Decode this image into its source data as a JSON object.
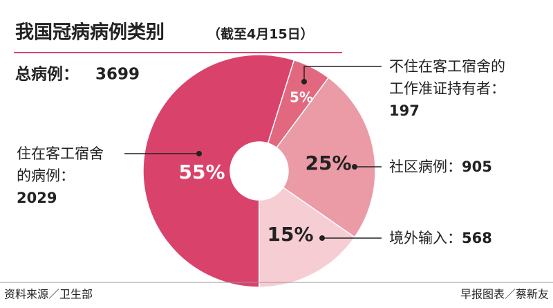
{
  "chart_data": {
    "type": "donut",
    "title": "我国冠病病例类别",
    "subtitle": "（截至4月15日）",
    "total_label": "总病例：",
    "total": 3699,
    "categories": [
      "住在客工宿舍的病例：",
      "不住在客工宿舍的工作准证持有者：",
      "社区病例：",
      "境外输入："
    ],
    "values": [
      2029,
      197,
      905,
      568
    ],
    "shares": [
      55,
      5,
      25,
      15
    ],
    "share_labels": [
      "55%",
      "5%",
      "25%",
      "15%"
    ],
    "colors": [
      "#d9436b",
      "#e2687f",
      "#eb9ba6",
      "#f6cdd3"
    ],
    "source": "资料来源／卫生部",
    "credit": "早报图表／蔡新友"
  }
}
